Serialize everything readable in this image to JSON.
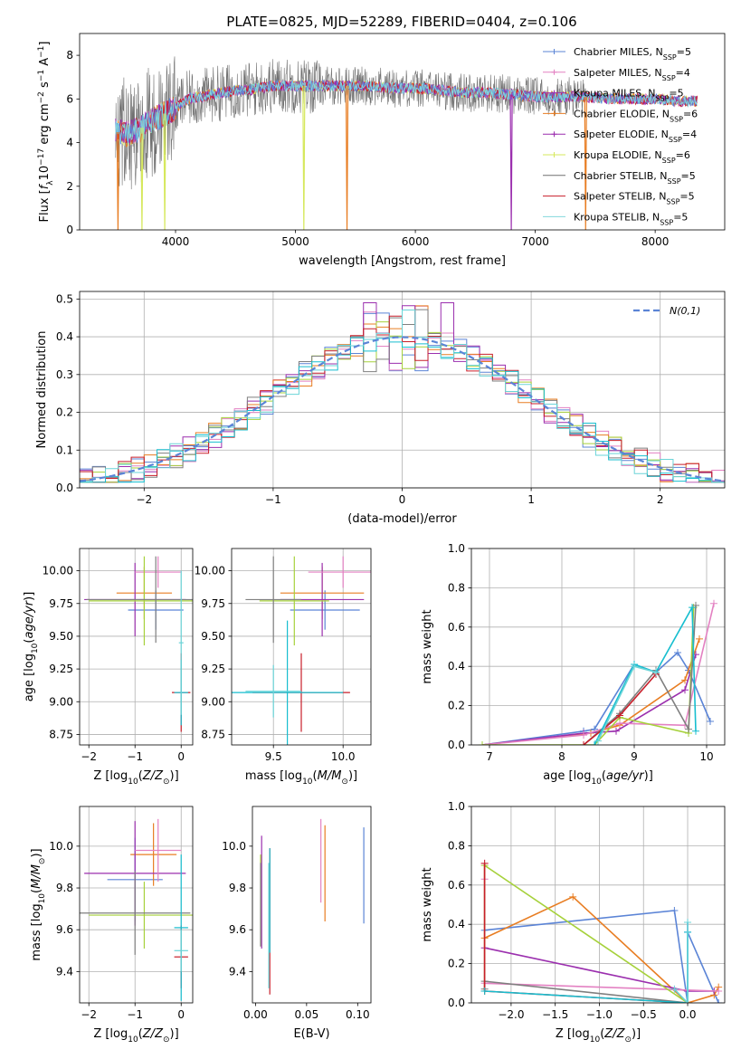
{
  "figure_title": "PLATE=0825, MJD=52289, FIBERID=0404, z=0.106",
  "colors": {
    "series": [
      "#5b84d6",
      "#e87d22",
      "#9b2fae",
      "#e381c2",
      "#a6d13b",
      "#7f7f7f",
      "#c81e2a",
      "#17becf",
      "#6ad4d8"
    ],
    "spectra": [
      "#5b84d6",
      "#e381c2",
      "#9b2fae",
      "#e87d22",
      "#9b2fae",
      "#d6e85c",
      "#707070",
      "#c81e2a",
      "#82d8dc"
    ]
  },
  "chart_data": [
    {
      "id": "spectrum",
      "type": "line",
      "title": "PLATE=0825, MJD=52289, FIBERID=0404, z=0.106",
      "xlabel": "wavelength [Angstrom, rest frame]",
      "ylabel_parts": [
        "Flux [",
        "f",
        "λ",
        "10",
        "−17",
        " erg cm",
        "−2",
        " s",
        "−1",
        " A",
        "−1",
        "]"
      ],
      "xlim": [
        3200,
        8580
      ],
      "ylim": [
        0,
        9
      ],
      "xticks": [
        4000,
        5000,
        6000,
        7000,
        8000
      ],
      "yticks": [
        0,
        2,
        4,
        6,
        8
      ],
      "grid": false,
      "legend_position": "upper-right",
      "legend": [
        {
          "base": "Chabrier MILES, N",
          "sub": "SSP",
          "suffix": "=5"
        },
        {
          "base": "Salpeter MILES, N",
          "sub": "SSP",
          "suffix": "=4"
        },
        {
          "base": "Kroupa MILES, N",
          "sub": "SSP",
          "suffix": "=5"
        },
        {
          "base": "Chabrier ELODIE, N",
          "sub": "SSP",
          "suffix": "=6"
        },
        {
          "base": "Salpeter ELODIE, N",
          "sub": "SSP",
          "suffix": "=4"
        },
        {
          "base": "Kroupa ELODIE, N",
          "sub": "SSP",
          "suffix": "=6"
        },
        {
          "base": "Chabrier STELIB, N",
          "sub": "SSP",
          "suffix": "=5"
        },
        {
          "base": "Salpeter STELIB, N",
          "sub": "SSP",
          "suffix": "=5"
        },
        {
          "base": "Kroupa STELIB, N",
          "sub": "SSP",
          "suffix": "=5"
        }
      ],
      "continuum": {
        "x": [
          3500,
          3600,
          3700,
          3800,
          3900,
          4000,
          4100,
          4200,
          4300,
          4400,
          4500,
          4600,
          4700,
          4800,
          5000,
          5200,
          5400,
          5600,
          5800,
          6000,
          6200,
          6400,
          6600,
          6800,
          7000,
          7200,
          7400,
          7600,
          7800,
          8000,
          8200,
          8350
        ],
        "y": [
          4.5,
          4.4,
          4.6,
          5.0,
          5.3,
          5.6,
          6.0,
          6.1,
          6.2,
          6.3,
          6.4,
          6.4,
          6.5,
          6.6,
          6.6,
          6.6,
          6.6,
          6.6,
          6.5,
          6.5,
          6.4,
          6.3,
          6.3,
          6.2,
          6.1,
          6.1,
          6.1,
          6.0,
          6.0,
          6.0,
          5.9,
          5.9
        ]
      },
      "noise_x_range": [
        3500,
        7420
      ],
      "dips": [
        {
          "x": 3520,
          "y": 0.0
        },
        {
          "x": 3720,
          "y": 0.0
        },
        {
          "x": 3910,
          "y": 0.0
        },
        {
          "x": 5070,
          "y": 0.0
        },
        {
          "x": 5430,
          "y": 0.0
        },
        {
          "x": 6800,
          "y": 0.0
        },
        {
          "x": 7420,
          "y": 0.0
        }
      ]
    },
    {
      "id": "residuals",
      "type": "step",
      "xlabel": "(data-model)/error",
      "ylabel": "Normed distribution",
      "xlim": [
        -2.5,
        2.5
      ],
      "ylim": [
        0,
        0.52
      ],
      "xticks": [
        -2,
        -1,
        0,
        1,
        2
      ],
      "yticks": [
        0.0,
        0.1,
        0.2,
        0.3,
        0.4,
        0.5
      ],
      "grid": true,
      "legend_position": "upper-right",
      "legend_label": "N(0,1)",
      "bin_width": 0.1,
      "bin_start": -2.5,
      "n_bins": 50
    },
    {
      "id": "age-z",
      "type": "errorbar",
      "xlabel_parts": [
        "Z [log",
        "10",
        "(",
        "Z/Z",
        "⊙",
        ")]"
      ],
      "ylabel_parts": [
        "age  [log",
        "10",
        "(",
        "age/yr",
        ")]"
      ],
      "xlim": [
        -2.2,
        0.25
      ],
      "ylim": [
        8.67,
        10.17
      ],
      "xticks": [
        -2,
        -1,
        0
      ],
      "yticks": [
        8.75,
        9.0,
        9.25,
        9.5,
        9.75,
        10.0
      ],
      "grid": true,
      "points": [
        {
          "x": -0.55,
          "y": 9.7,
          "xerr": 0.6,
          "yerr": 0.15
        },
        {
          "x": -0.8,
          "y": 9.83,
          "xerr": 0.6,
          "yerr": 0.2
        },
        {
          "x": -1.0,
          "y": 9.78,
          "xerr": 1.1,
          "yerr": 0.28
        },
        {
          "x": -0.5,
          "y": 9.99,
          "xerr": 0.5,
          "yerr": 0.12
        },
        {
          "x": -0.8,
          "y": 9.77,
          "xerr": 1.2,
          "yerr": 0.34
        },
        {
          "x": -0.55,
          "y": 9.78,
          "xerr": 1.5,
          "yerr": 0.33
        },
        {
          "x": 0.0,
          "y": 9.07,
          "xerr": 0.2,
          "yerr": 0.3
        },
        {
          "x": 0.0,
          "y": 9.07,
          "xerr": 0.15,
          "yerr": 0.25
        },
        {
          "x": 0.0,
          "y": 9.45,
          "xerr": 0.05,
          "yerr": 0.55
        }
      ]
    },
    {
      "id": "age-mass",
      "type": "errorbar",
      "xlabel_parts": [
        "mass [log",
        "10",
        "(",
        "M/M",
        "⊙",
        ")]"
      ],
      "xlim": [
        9.2,
        10.2
      ],
      "ylim": [
        8.67,
        10.17
      ],
      "xticks": [
        9.5,
        10.0
      ],
      "yticks": [
        8.75,
        9.0,
        9.25,
        9.5,
        9.75,
        10.0
      ],
      "grid": true,
      "points": [
        {
          "x": 9.87,
          "y": 9.7,
          "xerr": 0.25,
          "yerr": 0.15
        },
        {
          "x": 9.85,
          "y": 9.83,
          "xerr": 0.3,
          "yerr": 0.2
        },
        {
          "x": 9.85,
          "y": 9.78,
          "xerr": 0.3,
          "yerr": 0.28
        },
        {
          "x": 10.0,
          "y": 9.99,
          "xerr": 0.25,
          "yerr": 0.12
        },
        {
          "x": 9.65,
          "y": 9.77,
          "xerr": 0.25,
          "yerr": 0.34
        },
        {
          "x": 9.5,
          "y": 9.78,
          "xerr": 0.2,
          "yerr": 0.33
        },
        {
          "x": 9.7,
          "y": 9.07,
          "xerr": 0.35,
          "yerr": 0.3
        },
        {
          "x": 9.6,
          "y": 9.07,
          "xerr": 0.4,
          "yerr": 0.55
        },
        {
          "x": 9.5,
          "y": 9.08,
          "xerr": 0.2,
          "yerr": 0.2
        }
      ]
    },
    {
      "id": "massweight-age",
      "type": "line",
      "xlabel_parts": [
        "age  [log",
        "10",
        "(",
        "age/yr",
        ")]"
      ],
      "ylabel": "mass weight",
      "xlim": [
        6.75,
        10.25
      ],
      "ylim": [
        0,
        1.0
      ],
      "xticks": [
        7,
        8,
        9,
        10
      ],
      "yticks": [
        0.0,
        0.2,
        0.4,
        0.6,
        0.8,
        1.0
      ],
      "grid": true,
      "series": [
        {
          "x": [
            6.9,
            8.3,
            8.45,
            9.0,
            9.3,
            9.6,
            9.75,
            10.05
          ],
          "y": [
            0.0,
            0.07,
            0.08,
            0.41,
            0.37,
            0.47,
            0.38,
            0.12
          ]
        },
        {
          "x": [
            6.9,
            8.4,
            8.8,
            9.7,
            9.9
          ],
          "y": [
            0.0,
            0.06,
            0.1,
            0.33,
            0.54
          ]
        },
        {
          "x": [
            6.9,
            8.3,
            8.75,
            9.7,
            9.85
          ],
          "y": [
            0.0,
            0.06,
            0.07,
            0.28,
            0.46
          ]
        },
        {
          "x": [
            6.9,
            8.3,
            8.8,
            9.7,
            10.1
          ],
          "y": [
            0.0,
            0.05,
            0.11,
            0.1,
            0.72
          ]
        },
        {
          "x": [
            6.9,
            8.45,
            8.8,
            9.75,
            9.82
          ],
          "y": [
            0.0,
            0.0,
            0.14,
            0.06,
            0.7
          ]
        },
        {
          "x": [
            8.3,
            8.8,
            9.3,
            9.75,
            9.85
          ],
          "y": [
            0.0,
            0.16,
            0.38,
            0.08,
            0.71
          ]
        },
        {
          "x": [
            8.3,
            8.8,
            9.3
          ],
          "y": [
            0.0,
            0.15,
            0.36
          ]
        },
        {
          "x": [
            8.45,
            9.0,
            9.3,
            9.8,
            9.85
          ],
          "y": [
            0.0,
            0.41,
            0.37,
            0.7,
            0.07
          ]
        },
        {
          "x": [
            8.5,
            9.0,
            9.3
          ],
          "y": [
            0.02,
            0.4,
            0.37
          ]
        }
      ]
    },
    {
      "id": "mass-z",
      "type": "errorbar",
      "xlabel_parts": [
        "Z [log",
        "10",
        "(",
        "Z/Z",
        "⊙",
        ")]"
      ],
      "ylabel_parts": [
        "mass [log",
        "10",
        "(",
        "M/M",
        "⊙",
        ")]"
      ],
      "xlim": [
        -2.2,
        0.25
      ],
      "ylim": [
        9.25,
        10.19
      ],
      "xticks": [
        -2,
        -1,
        0
      ],
      "yticks": [
        9.4,
        9.6,
        9.8,
        10.0
      ],
      "grid": true,
      "points": [
        {
          "x": -1.0,
          "y": 9.84,
          "xerr": 0.6,
          "yerr": 0.2
        },
        {
          "x": -0.6,
          "y": 9.96,
          "xerr": 0.5,
          "yerr": 0.15
        },
        {
          "x": -1.0,
          "y": 9.87,
          "xerr": 1.1,
          "yerr": 0.25
        },
        {
          "x": -0.5,
          "y": 9.98,
          "xerr": 0.5,
          "yerr": 0.15
        },
        {
          "x": -0.8,
          "y": 9.67,
          "xerr": 1.2,
          "yerr": 0.16
        },
        {
          "x": -1.0,
          "y": 9.68,
          "xerr": 1.2,
          "yerr": 0.2
        },
        {
          "x": 0.0,
          "y": 9.47,
          "xerr": 0.15,
          "yerr": 0.15
        },
        {
          "x": 0.0,
          "y": 9.61,
          "xerr": 0.15,
          "yerr": 0.35
        },
        {
          "x": 0.0,
          "y": 9.5,
          "xerr": 0.15,
          "yerr": 0.1
        }
      ]
    },
    {
      "id": "mass-ebv",
      "type": "errorbar",
      "xlabel": "E(B-V)",
      "xlim": [
        -0.003,
        0.113
      ],
      "ylim": [
        9.25,
        10.19
      ],
      "xticks": [
        0.0,
        0.05,
        0.1
      ],
      "yticks": [
        9.4,
        9.6,
        9.8,
        10.0
      ],
      "grid": false,
      "points": [
        {
          "x": 0.106,
          "y": 9.86,
          "xerr": 0,
          "yerr": 0.23
        },
        {
          "x": 0.068,
          "y": 9.87,
          "xerr": 0,
          "yerr": 0.23
        },
        {
          "x": 0.006,
          "y": 9.78,
          "xerr": 0,
          "yerr": 0.27
        },
        {
          "x": 0.064,
          "y": 9.93,
          "xerr": 0,
          "yerr": 0.2
        },
        {
          "x": 0.005,
          "y": 9.74,
          "xerr": 0,
          "yerr": 0.22
        },
        {
          "x": 0.005,
          "y": 9.72,
          "xerr": 0,
          "yerr": 0.2
        },
        {
          "x": 0.014,
          "y": 9.64,
          "xerr": 0,
          "yerr": 0.35
        },
        {
          "x": 0.014,
          "y": 9.74,
          "xerr": 0,
          "yerr": 0.25
        },
        {
          "x": 0.013,
          "y": 9.62,
          "xerr": 0,
          "yerr": 0.3
        }
      ]
    },
    {
      "id": "massweight-z",
      "type": "line",
      "xlabel_parts": [
        "Z [log",
        "10",
        "(",
        "Z/Z",
        "⊙",
        ")]"
      ],
      "ylabel": "mass weight",
      "xlim": [
        -2.45,
        0.42
      ],
      "ylim": [
        0,
        1.0
      ],
      "xticks": [
        -2.0,
        -1.5,
        -1.0,
        -0.5,
        0.0
      ],
      "yticks": [
        0.0,
        0.2,
        0.4,
        0.6,
        0.8,
        1.0
      ],
      "grid": true,
      "series": [
        {
          "x": [
            -2.3,
            -0.15,
            0.0,
            0.0,
            0.0,
            0.35
          ],
          "y": [
            0.37,
            0.47,
            0.0,
            0.41,
            0.36,
            0.0
          ]
        },
        {
          "x": [
            -2.3,
            -1.3,
            0.0,
            0.3,
            0.35
          ],
          "y": [
            0.33,
            0.54,
            0.0,
            0.04,
            0.08
          ]
        },
        {
          "x": [
            -2.3,
            0.0,
            0.3
          ],
          "y": [
            0.28,
            0.06,
            0.06
          ]
        },
        {
          "x": [
            -2.3,
            -2.3,
            -2.3,
            0.35
          ],
          "y": [
            0.71,
            0.63,
            0.1,
            0.06
          ]
        },
        {
          "x": [
            -2.3,
            -2.3,
            0.0
          ],
          "y": [
            0.06,
            0.7,
            0.0
          ]
        },
        {
          "x": [
            -2.3,
            -2.3,
            0.0
          ],
          "y": [
            0.07,
            0.11,
            0.0
          ]
        },
        {
          "x": [
            -2.3,
            -2.3,
            0.0
          ],
          "y": [
            0.71,
            0.06,
            0.0
          ]
        },
        {
          "x": [
            -2.3,
            0.0,
            0.0
          ],
          "y": [
            0.06,
            0.0,
            0.36
          ]
        },
        {
          "x": [
            -0.15,
            0.0,
            0.0
          ],
          "y": [
            0.07,
            0.0,
            0.41
          ]
        }
      ]
    }
  ]
}
